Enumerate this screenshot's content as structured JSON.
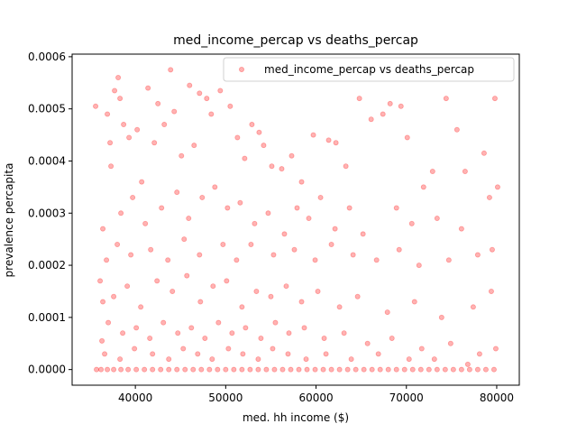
{
  "chart_data": {
    "type": "scatter",
    "title": "med_income_percap vs deaths_percap",
    "xlabel": "med. hh income ($)",
    "ylabel": "prevalence percapita",
    "xlim": [
      33000,
      82500
    ],
    "ylim": [
      -3e-05,
      0.000605
    ],
    "xticks": [
      40000,
      50000,
      60000,
      70000,
      80000
    ],
    "xtick_labels": [
      "40000",
      "50000",
      "60000",
      "70000",
      "80000"
    ],
    "yticks": [
      0.0,
      0.0001,
      0.0002,
      0.0003,
      0.0004,
      0.0005,
      0.0006
    ],
    "ytick_labels": [
      "0.0000",
      "0.0001",
      "0.0002",
      "0.0003",
      "0.0004",
      "0.0005",
      "0.0006"
    ],
    "grid": false,
    "legend": {
      "position": "top-right",
      "entries": [
        "med_income_percap vs deaths_percap"
      ]
    },
    "marker_color": "#ff0000",
    "marker_alpha": 0.3,
    "series": [
      {
        "name": "med_income_percap vs deaths_percap",
        "points": [
          [
            35600,
            0.000505
          ],
          [
            36100,
            0.00017
          ],
          [
            36400,
            0.00013
          ],
          [
            36900,
            0.00049
          ],
          [
            37200,
            0.000435
          ],
          [
            37700,
            0.000535
          ],
          [
            38100,
            0.00056
          ],
          [
            38300,
            0.00052
          ],
          [
            38700,
            0.00047
          ],
          [
            39300,
            0.000445
          ],
          [
            40200,
            0.00046
          ],
          [
            40700,
            0.00036
          ],
          [
            41400,
            0.00054
          ],
          [
            42100,
            0.000435
          ],
          [
            42500,
            0.00051
          ],
          [
            43200,
            0.00047
          ],
          [
            43900,
            0.000575
          ],
          [
            44300,
            0.000495
          ],
          [
            45100,
            0.00041
          ],
          [
            46000,
            0.000545
          ],
          [
            46500,
            0.00043
          ],
          [
            47100,
            0.00053
          ],
          [
            47900,
            0.00052
          ],
          [
            48400,
            0.00049
          ],
          [
            49400,
            0.000535
          ],
          [
            50500,
            0.000505
          ],
          [
            51300,
            0.000445
          ],
          [
            52100,
            0.000405
          ],
          [
            52900,
            0.00047
          ],
          [
            53700,
            0.000455
          ],
          [
            54200,
            0.00043
          ],
          [
            55100,
            0.00039
          ],
          [
            56200,
            0.000385
          ],
          [
            57300,
            0.00041
          ],
          [
            58400,
            0.00036
          ],
          [
            59700,
            0.00045
          ],
          [
            61400,
            0.00044
          ],
          [
            62200,
            0.000435
          ],
          [
            63300,
            0.00039
          ],
          [
            64800,
            0.00052
          ],
          [
            66100,
            0.00048
          ],
          [
            67400,
            0.00049
          ],
          [
            68200,
            0.00051
          ],
          [
            69400,
            0.000505
          ],
          [
            70100,
            0.000445
          ],
          [
            71900,
            0.00035
          ],
          [
            72900,
            0.00038
          ],
          [
            74400,
            0.00052
          ],
          [
            75600,
            0.00046
          ],
          [
            76500,
            0.00038
          ],
          [
            77900,
            0.00022
          ],
          [
            78600,
            0.000415
          ],
          [
            79200,
            0.00033
          ],
          [
            79800,
            0.00052
          ],
          [
            80100,
            0.00035
          ],
          [
            36400,
            0.00027
          ],
          [
            37300,
            0.00039
          ],
          [
            38400,
            0.0003
          ],
          [
            39700,
            0.00033
          ],
          [
            41100,
            0.00028
          ],
          [
            42900,
            0.00031
          ],
          [
            44600,
            0.00034
          ],
          [
            45900,
            0.00029
          ],
          [
            47400,
            0.00033
          ],
          [
            48800,
            0.00035
          ],
          [
            50200,
            0.00031
          ],
          [
            51600,
            0.00032
          ],
          [
            53200,
            0.00028
          ],
          [
            54700,
            0.0003
          ],
          [
            56500,
            0.00026
          ],
          [
            57900,
            0.00031
          ],
          [
            59200,
            0.00029
          ],
          [
            60500,
            0.00033
          ],
          [
            62100,
            0.00027
          ],
          [
            63700,
            0.00031
          ],
          [
            65200,
            0.00026
          ],
          [
            68900,
            0.00031
          ],
          [
            70600,
            0.00028
          ],
          [
            73400,
            0.00029
          ],
          [
            76100,
            0.00027
          ],
          [
            36800,
            0.00021
          ],
          [
            38000,
            0.00024
          ],
          [
            39500,
            0.00022
          ],
          [
            41700,
            0.00023
          ],
          [
            43600,
            0.00021
          ],
          [
            45400,
            0.00025
          ],
          [
            47100,
            0.00022
          ],
          [
            49700,
            0.00024
          ],
          [
            51200,
            0.00021
          ],
          [
            52800,
            0.00024
          ],
          [
            55300,
            0.00022
          ],
          [
            57600,
            0.00023
          ],
          [
            59900,
            0.00021
          ],
          [
            61700,
            0.00024
          ],
          [
            64100,
            0.00022
          ],
          [
            66700,
            0.00021
          ],
          [
            69200,
            0.00023
          ],
          [
            71400,
            0.0002
          ],
          [
            74700,
            0.00021
          ],
          [
            79500,
            0.00023
          ],
          [
            36300,
            5.5e-05
          ],
          [
            37600,
            0.00014
          ],
          [
            39100,
            0.00016
          ],
          [
            40600,
            0.00012
          ],
          [
            42400,
            0.00017
          ],
          [
            44100,
            0.00015
          ],
          [
            45700,
            0.00018
          ],
          [
            47200,
            0.00013
          ],
          [
            48600,
            0.00016
          ],
          [
            50100,
            0.00017
          ],
          [
            51800,
            0.00012
          ],
          [
            53400,
            0.00015
          ],
          [
            55000,
            0.00014
          ],
          [
            56700,
            0.00016
          ],
          [
            58400,
            0.00013
          ],
          [
            60200,
            0.00015
          ],
          [
            62600,
            0.00012
          ],
          [
            64600,
            0.00014
          ],
          [
            67900,
            0.00011
          ],
          [
            70900,
            0.00013
          ],
          [
            73900,
            0.0001
          ],
          [
            77400,
            0.00012
          ],
          [
            79400,
            0.00015
          ],
          [
            37000,
            9e-05
          ],
          [
            38600,
            7e-05
          ],
          [
            40100,
            8e-05
          ],
          [
            41600,
            6e-05
          ],
          [
            43100,
            9e-05
          ],
          [
            44700,
            7e-05
          ],
          [
            46200,
            8e-05
          ],
          [
            47700,
            6e-05
          ],
          [
            49200,
            9e-05
          ],
          [
            50700,
            7e-05
          ],
          [
            52200,
            8e-05
          ],
          [
            53900,
            6e-05
          ],
          [
            55500,
            9e-05
          ],
          [
            57000,
            7e-05
          ],
          [
            58700,
            8e-05
          ],
          [
            60900,
            6e-05
          ],
          [
            63100,
            7e-05
          ],
          [
            65700,
            5e-05
          ],
          [
            68400,
            6e-05
          ],
          [
            71700,
            4e-05
          ],
          [
            74900,
            5e-05
          ],
          [
            78100,
            3e-05
          ],
          [
            79900,
            4e-05
          ],
          [
            36600,
            3e-05
          ],
          [
            38300,
            2e-05
          ],
          [
            39900,
            4e-05
          ],
          [
            41900,
            3e-05
          ],
          [
            43700,
            2e-05
          ],
          [
            45300,
            4e-05
          ],
          [
            46900,
            3e-05
          ],
          [
            48500,
            2e-05
          ],
          [
            50300,
            4e-05
          ],
          [
            51900,
            3e-05
          ],
          [
            53600,
            2e-05
          ],
          [
            55200,
            4e-05
          ],
          [
            56900,
            3e-05
          ],
          [
            58900,
            2e-05
          ],
          [
            61100,
            3e-05
          ],
          [
            63900,
            2e-05
          ],
          [
            66900,
            3e-05
          ],
          [
            70300,
            2e-05
          ],
          [
            73100,
            2e-05
          ],
          [
            76800,
            1e-05
          ],
          [
            35700,
            0.0
          ],
          [
            36200,
            0.0
          ],
          [
            36900,
            0.0
          ],
          [
            37600,
            0.0
          ],
          [
            38400,
            0.0
          ],
          [
            39200,
            0.0
          ],
          [
            40100,
            0.0
          ],
          [
            41000,
            0.0
          ],
          [
            41900,
            0.0
          ],
          [
            42800,
            0.0
          ],
          [
            43700,
            0.0
          ],
          [
            44600,
            0.0
          ],
          [
            45500,
            0.0
          ],
          [
            46400,
            0.0
          ],
          [
            47300,
            0.0
          ],
          [
            48200,
            0.0
          ],
          [
            49100,
            0.0
          ],
          [
            50000,
            0.0
          ],
          [
            50900,
            0.0
          ],
          [
            51800,
            0.0
          ],
          [
            52700,
            0.0
          ],
          [
            53600,
            0.0
          ],
          [
            54500,
            0.0
          ],
          [
            55400,
            0.0
          ],
          [
            56300,
            0.0
          ],
          [
            57200,
            0.0
          ],
          [
            58100,
            0.0
          ],
          [
            59000,
            0.0
          ],
          [
            59900,
            0.0
          ],
          [
            60800,
            0.0
          ],
          [
            61700,
            0.0
          ],
          [
            62600,
            0.0
          ],
          [
            63500,
            0.0
          ],
          [
            64400,
            0.0
          ],
          [
            65300,
            0.0
          ],
          [
            66200,
            0.0
          ],
          [
            67100,
            0.0
          ],
          [
            68000,
            0.0
          ],
          [
            68900,
            0.0
          ],
          [
            69800,
            0.0
          ],
          [
            70700,
            0.0
          ],
          [
            71600,
            0.0
          ],
          [
            72500,
            0.0
          ],
          [
            73400,
            0.0
          ],
          [
            74300,
            0.0
          ],
          [
            75200,
            0.0
          ],
          [
            76100,
            0.0
          ],
          [
            77000,
            0.0
          ],
          [
            77900,
            0.0
          ],
          [
            78800,
            0.0
          ],
          [
            79700,
            0.0
          ]
        ]
      }
    ]
  }
}
